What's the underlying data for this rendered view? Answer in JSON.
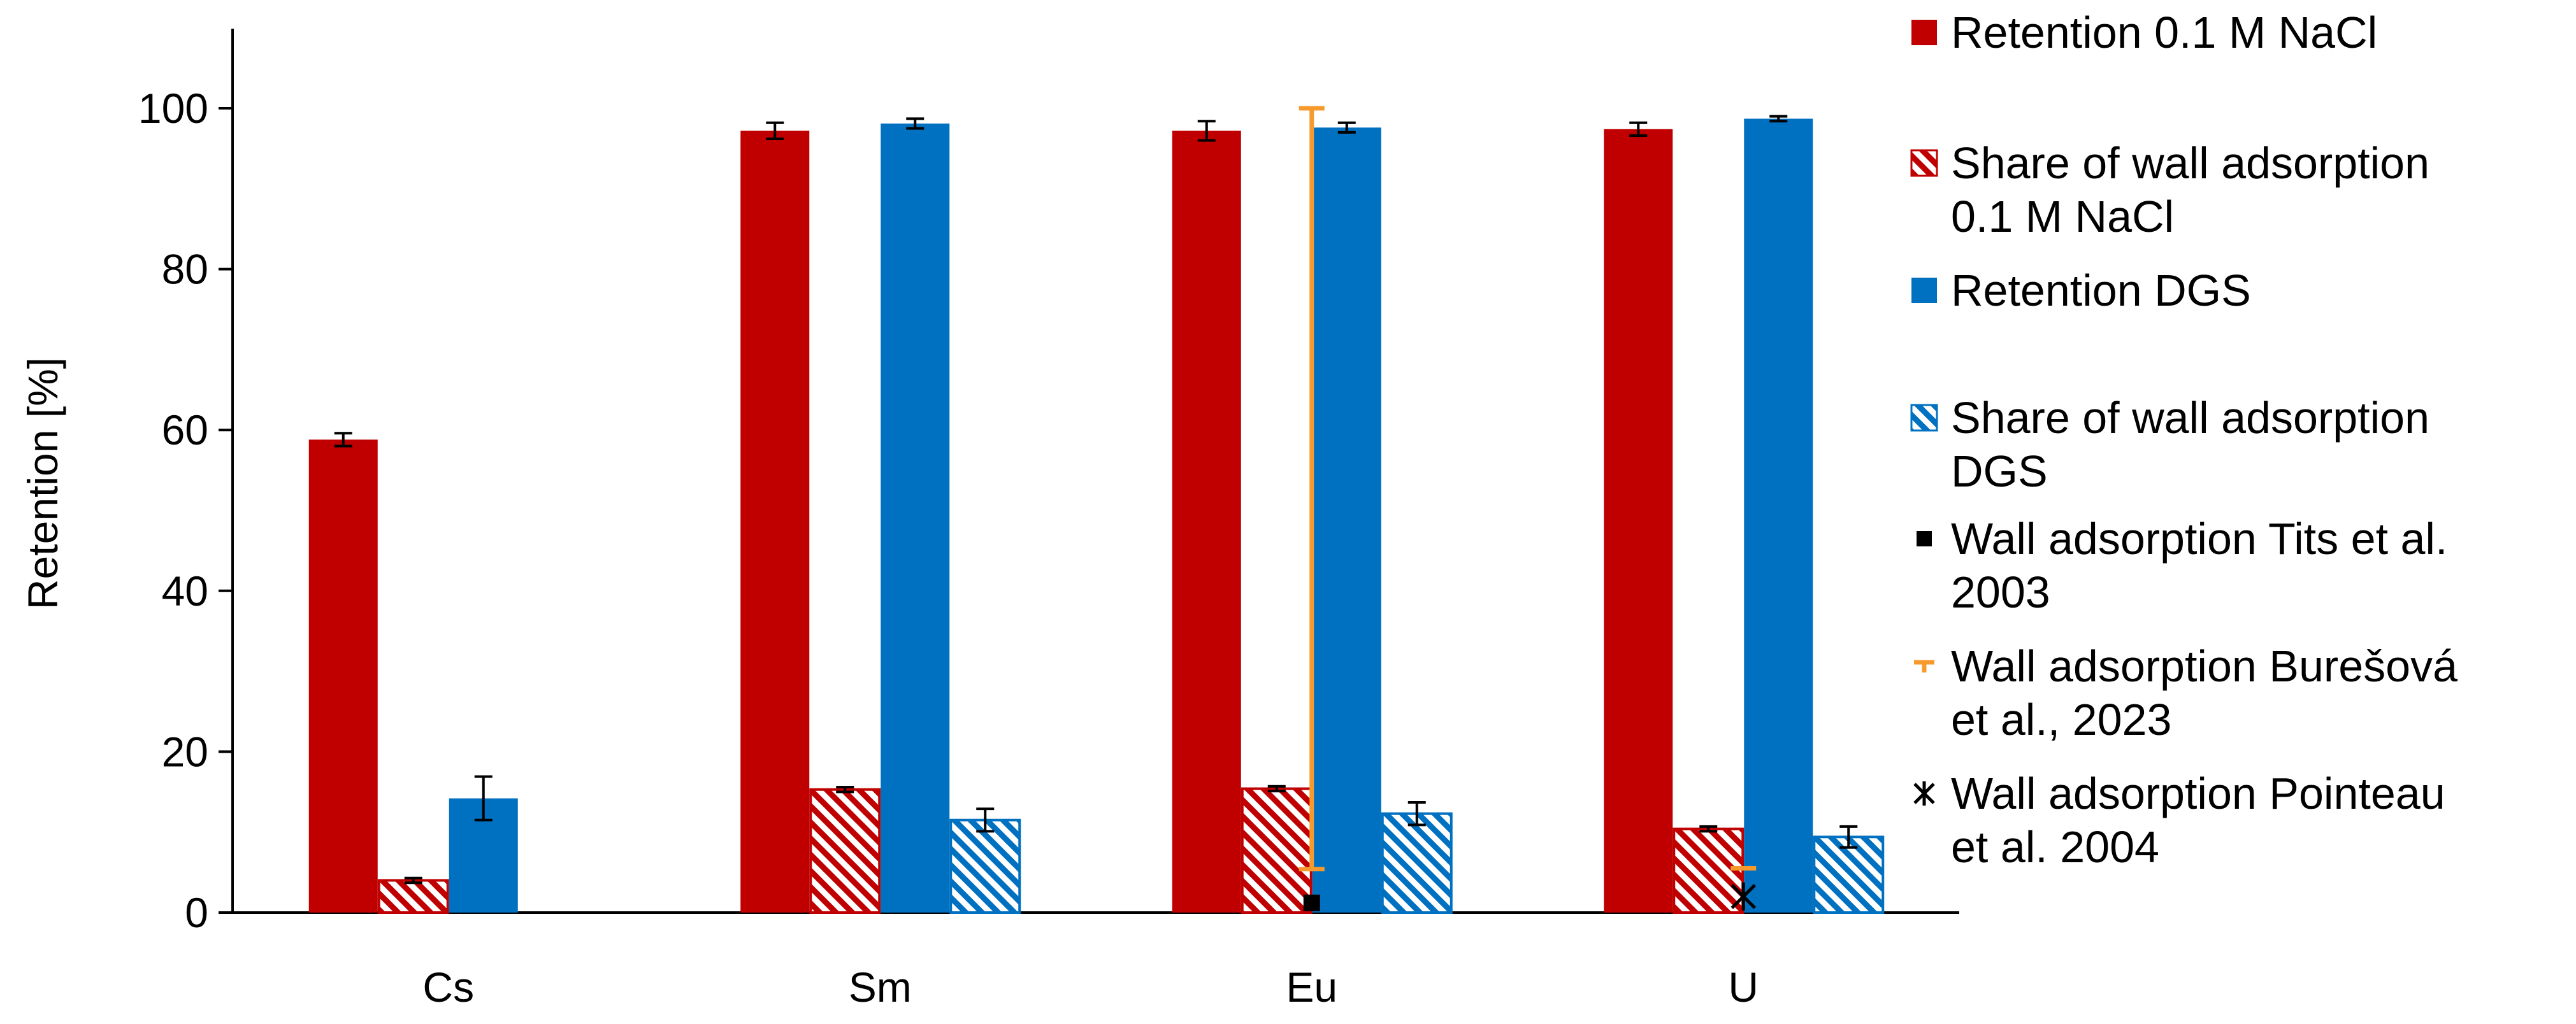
{
  "chart_data": {
    "type": "bar",
    "title": "",
    "xlabel": "",
    "ylabel": "Retention [%]",
    "ylim": [
      0,
      110
    ],
    "yticks": [
      "0",
      "20",
      "40",
      "60",
      "80",
      "100"
    ],
    "grid": false,
    "legend_position": "right",
    "categories": [
      "Cs",
      "Sm",
      "Eu",
      "U"
    ],
    "series": [
      {
        "name": "Retention 0.1 M NaCl",
        "values": [
          58.8,
          97.2,
          97.2,
          97.4
        ],
        "errors": [
          0.8,
          1.0,
          1.2,
          0.8
        ],
        "color": "#C00000",
        "pattern": "solid"
      },
      {
        "name": "Share of wall adsorption 0.1 M NaCl",
        "values": [
          4.0,
          15.3,
          15.4,
          10.4
        ],
        "errors": [
          0.3,
          0.3,
          0.3,
          0.3
        ],
        "color": "#C00000",
        "pattern": "hatched"
      },
      {
        "name": "Retention DGS",
        "values": [
          14.2,
          98.1,
          97.6,
          98.7
        ],
        "errors": [
          2.7,
          0.6,
          0.6,
          0.3
        ],
        "color": "#0070C0",
        "pattern": "solid"
      },
      {
        "name": "Share of wall adsorption DGS",
        "values": [
          null,
          11.5,
          12.3,
          9.4
        ],
        "errors": [
          null,
          1.4,
          1.4,
          1.3
        ],
        "color": "#0070C0",
        "pattern": "hatched"
      }
    ],
    "reference_points": [
      {
        "name": "Wall adsorption Tits et al. 2003",
        "category": "Eu",
        "value": 1.2,
        "marker": "square",
        "color": "#000000"
      },
      {
        "name": "Wall adsorption Burešová et al., 2023",
        "category": "Eu",
        "value": 52.7,
        "error_low": 5.4,
        "error_high": 100.0,
        "marker": "dash",
        "color": "#F79A2E"
      },
      {
        "name": "Wall adsorption Pointeau et al. 2004",
        "category": "U",
        "value": 2.0,
        "marker": "star",
        "color": "#000000"
      }
    ],
    "reference_extra": [
      {
        "category": "U",
        "value": 5.5,
        "marker": "dash",
        "color": "#F79A2E"
      }
    ],
    "legend": [
      {
        "lines": [
          "Retention 0.1 M NaCl"
        ],
        "symbol": "solid-red"
      },
      {
        "lines": [
          "Share of wall adsorption",
          "0.1 M NaCl"
        ],
        "symbol": "hatch-red"
      },
      {
        "lines": [
          "Retention DGS"
        ],
        "symbol": "solid-blue"
      },
      {
        "lines": [
          "Share of wall adsorption",
          "DGS"
        ],
        "symbol": "hatch-blue"
      },
      {
        "lines": [
          "Wall adsorption Tits et al.",
          "2003"
        ],
        "symbol": "square-black"
      },
      {
        "lines": [
          "Wall adsorption Burešová",
          "et al., 2023"
        ],
        "symbol": "dash-orange"
      },
      {
        "lines": [
          "Wall adsorption Pointeau",
          "et al. 2004"
        ],
        "symbol": "star-black"
      }
    ]
  }
}
